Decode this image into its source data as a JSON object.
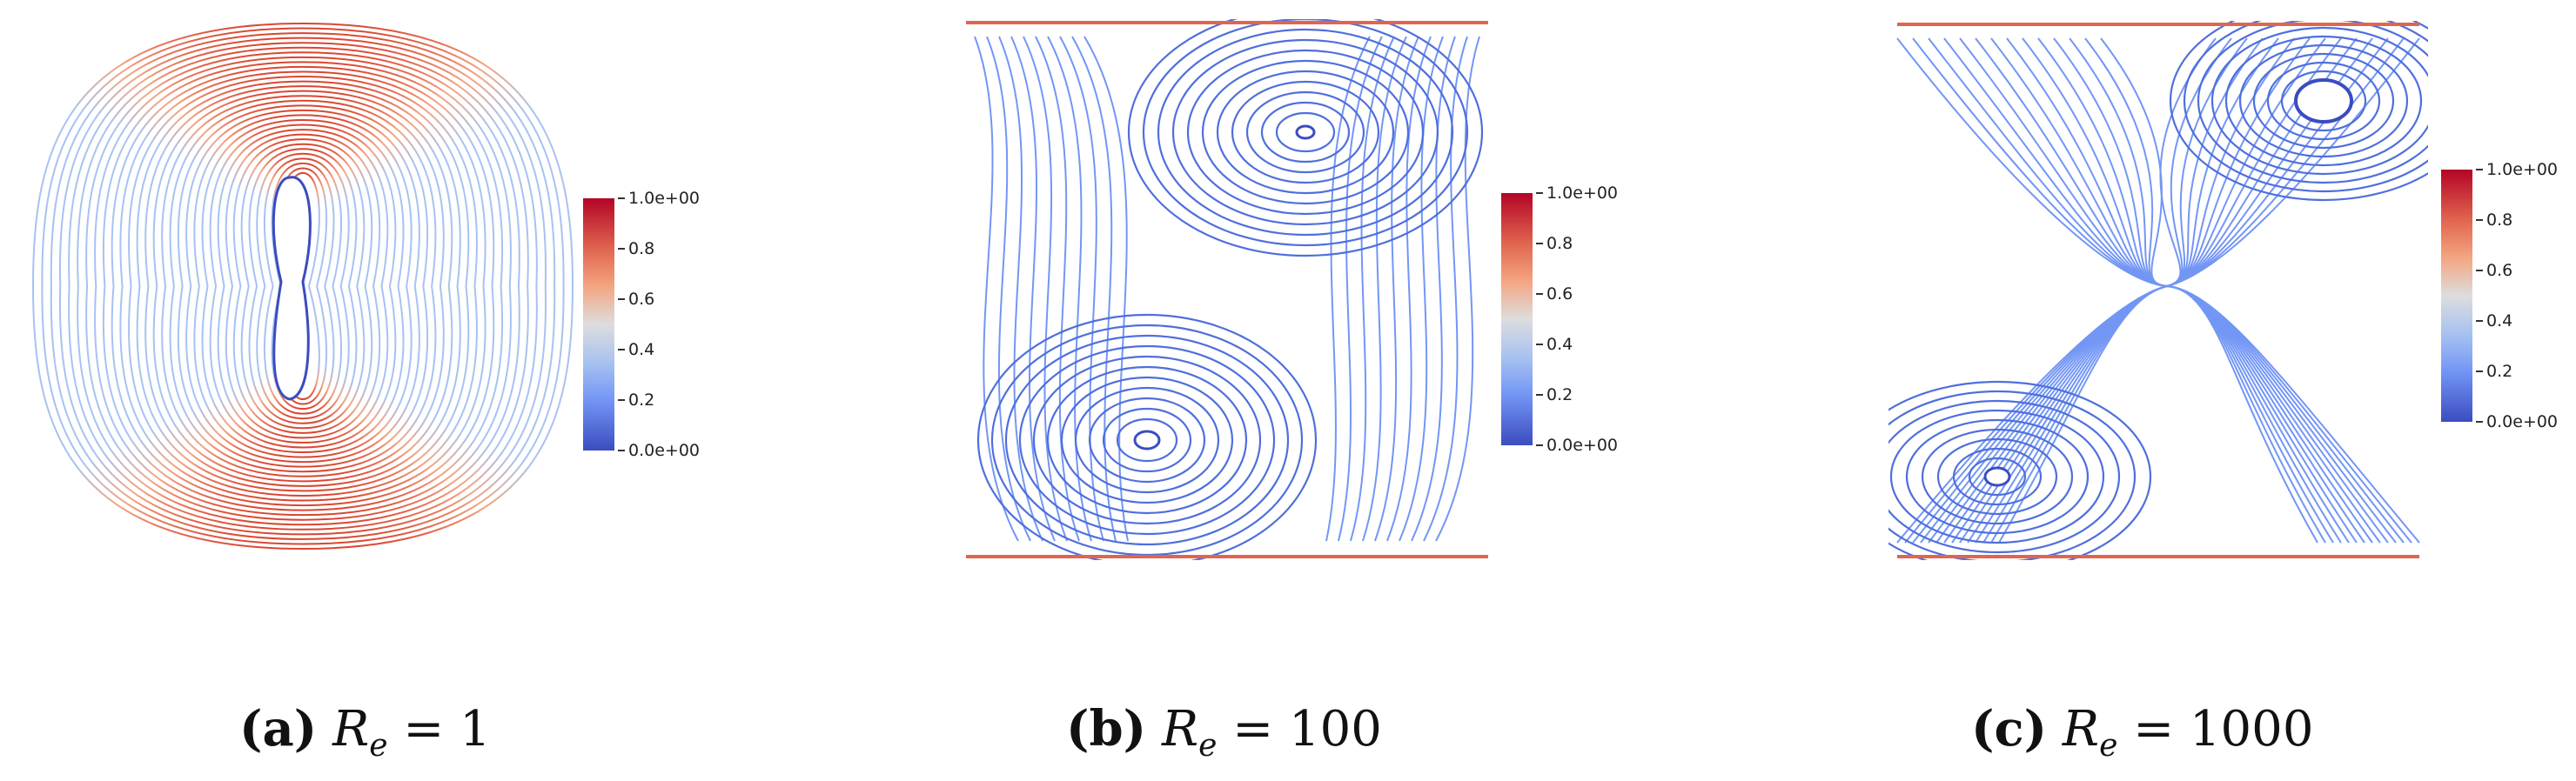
{
  "panels": [
    {
      "id": "a",
      "caption_letter": "(a)",
      "caption_var": "R",
      "caption_sub": "e",
      "caption_rhs": "= 1",
      "colorbar": {
        "max_label": "1.0e+00",
        "ticks": [
          "0.8",
          "0.6",
          "0.4",
          "0.2"
        ],
        "min_label": "0.0e+00"
      }
    },
    {
      "id": "b",
      "caption_letter": "(b)",
      "caption_var": "R",
      "caption_sub": "e",
      "caption_rhs": "= 100",
      "colorbar": {
        "max_label": "1.0e+00",
        "ticks": [
          "0.8",
          "0.6",
          "0.4",
          "0.2"
        ],
        "min_label": "0.0e+00"
      }
    },
    {
      "id": "c",
      "caption_letter": "(c)",
      "caption_var": "R",
      "caption_sub": "e",
      "caption_rhs": "= 1000",
      "colorbar": {
        "max_label": "1.0e+00",
        "ticks": [
          "0.8",
          "0.6",
          "0.4",
          "0.2"
        ],
        "min_label": "0.0e+00"
      }
    }
  ],
  "colors": {
    "stream_low": "#3b4cc0",
    "stream_mid": "#a8c2f0",
    "stream_high": "#d9442f"
  }
}
